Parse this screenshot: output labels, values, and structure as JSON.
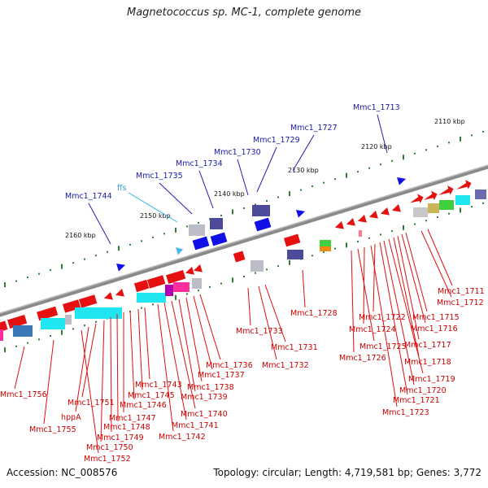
{
  "title": "Magnetococcus sp. MC-1, complete genome",
  "footer": {
    "accession": "Accession: NC_008576",
    "topology": "Topology: circular; Length: 4,719,581 bp; Genes: 3,772"
  },
  "colors": {
    "backbone": "#7f7f7f",
    "forward_gene": "#1010e6",
    "reverse_gene": "#e61010",
    "rna": "#4ab8e8",
    "label_forward": "#1a1aa6",
    "label_reverse": "#cc0000",
    "label_rna": "#3399cc",
    "ticks_major": "#2e7d32",
    "ticks_minor": "#2e7d32"
  },
  "scale_labels": [
    {
      "text": "2110 kbp",
      "kbp": 2110
    },
    {
      "text": "2120 kbp",
      "kbp": 2120
    },
    {
      "text": "2130 kbp",
      "kbp": 2130
    },
    {
      "text": "2140 kbp",
      "kbp": 2140
    },
    {
      "text": "2150 kbp",
      "kbp": 2150
    },
    {
      "text": "2160 kbp",
      "kbp": 2160
    }
  ],
  "labels_forward": [
    {
      "text": "Mmc1_1713",
      "kbp": 2117
    },
    {
      "text": "Mmc1_1727",
      "kbp": 2131
    },
    {
      "text": "Mmc1_1729",
      "kbp": 2137
    },
    {
      "text": "Mmc1_1730",
      "kbp": 2139
    },
    {
      "text": "Mmc1_1734",
      "kbp": 2145
    },
    {
      "text": "Mmc1_1735",
      "kbp": 2147
    },
    {
      "text": "Mmc1_1744",
      "kbp": 2158
    }
  ],
  "labels_rna": [
    {
      "text": "ffs",
      "kbp": 2149
    }
  ],
  "labels_reverse": [
    {
      "text": "Mmc1_1711",
      "kbp": 2113
    },
    {
      "text": "Mmc1_1712",
      "kbp": 2114
    },
    {
      "text": "Mmc1_1715",
      "kbp": 2116
    },
    {
      "text": "Mmc1_1716",
      "kbp": 2117
    },
    {
      "text": "Mmc1_1717",
      "kbp": 2118
    },
    {
      "text": "Mmc1_1718",
      "kbp": 2119
    },
    {
      "text": "Mmc1_1719",
      "kbp": 2120
    },
    {
      "text": "Mmc1_1720",
      "kbp": 2121
    },
    {
      "text": "Mmc1_1721",
      "kbp": 2122
    },
    {
      "text": "Mmc1_1722",
      "kbp": 2123
    },
    {
      "text": "Mmc1_1723",
      "kbp": 2124
    },
    {
      "text": "Mmc1_1724",
      "kbp": 2125
    },
    {
      "text": "Mmc1_1725",
      "kbp": 2126
    },
    {
      "text": "Mmc1_1726",
      "kbp": 2127
    },
    {
      "text": "Mmc1_1728",
      "kbp": 2132
    },
    {
      "text": "Mmc1_1731",
      "kbp": 2141
    },
    {
      "text": "Mmc1_1732",
      "kbp": 2142
    },
    {
      "text": "Mmc1_1733",
      "kbp": 2143
    },
    {
      "text": "Mmc1_1736",
      "kbp": 2148
    },
    {
      "text": "Mmc1_1737",
      "kbp": 2149
    },
    {
      "text": "Mmc1_1738",
      "kbp": 2150
    },
    {
      "text": "Mmc1_1739",
      "kbp": 2151
    },
    {
      "text": "Mmc1_1740",
      "kbp": 2152
    },
    {
      "text": "Mmc1_1741",
      "kbp": 2153
    },
    {
      "text": "Mmc1_1742",
      "kbp": 2154
    },
    {
      "text": "Mmc1_1743",
      "kbp": 2155
    },
    {
      "text": "Mmc1_1745",
      "kbp": 2156
    },
    {
      "text": "Mmc1_1746",
      "kbp": 2157
    },
    {
      "text": "Mmc1_1747",
      "kbp": 2158
    },
    {
      "text": "Mmc1_1748",
      "kbp": 2159
    },
    {
      "text": "Mmc1_1749",
      "kbp": 2160
    },
    {
      "text": "Mmc1_1750",
      "kbp": 2161
    },
    {
      "text": "Mmc1_1751",
      "kbp": 2162
    },
    {
      "text": "hppA",
      "kbp": 2163
    },
    {
      "text": "Mmc1_1752",
      "kbp": 2164
    },
    {
      "text": "Mmc1_1755",
      "kbp": 2166
    },
    {
      "text": "Mmc1_1756",
      "kbp": 2168
    }
  ]
}
